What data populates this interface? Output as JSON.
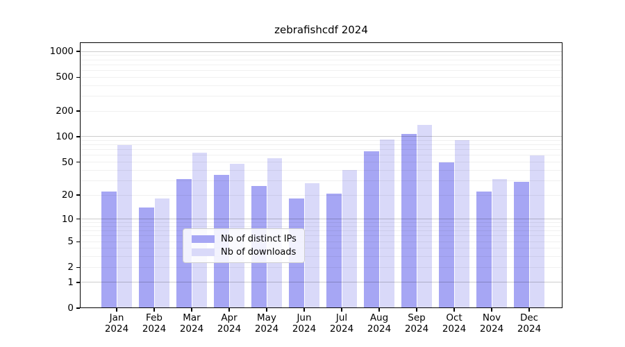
{
  "title": "zebrafishcdf 2024",
  "colors": {
    "bar_distinct_ips": "#a6a6f4",
    "bar_downloads": "#d9d9f9",
    "grid_major": "rgba(0,0,0,0.20)",
    "grid_minor": "rgba(0,0,0,0.06)",
    "spine": "#000000",
    "background": "#ffffff"
  },
  "chart_data": {
    "type": "bar",
    "title": "zebrafishcdf 2024",
    "categories": [
      "Jan",
      "Feb",
      "Mar",
      "Apr",
      "May",
      "Jun",
      "Jul",
      "Aug",
      "Sep",
      "Oct",
      "Nov",
      "Dec"
    ],
    "category_year": "2024",
    "series": [
      {
        "name": "Nb of distinct IPs",
        "color": "#a6a6f4",
        "values": [
          22,
          14,
          31,
          35,
          26,
          18,
          21,
          67,
          108,
          50,
          22,
          29
        ]
      },
      {
        "name": "Nb of downloads",
        "color": "#d9d9f9",
        "values": [
          79,
          18,
          65,
          48,
          55,
          28,
          40,
          93,
          137,
          90,
          31,
          60
        ]
      }
    ],
    "y_axis": {
      "scale": "log1p",
      "tick_values": [
        0,
        1,
        2,
        5,
        10,
        20,
        50,
        100,
        200,
        500,
        1000
      ],
      "tick_labels": [
        "0",
        "1",
        "2",
        "5",
        "10",
        "20",
        "50",
        "100",
        "200",
        "500",
        "1000"
      ],
      "major_grid_values": [
        1,
        10,
        100,
        1000
      ],
      "range_decades": 3.1062
    },
    "grid": true,
    "legend": {
      "position": "inside-bottom-center",
      "entries": [
        "Nb of distinct IPs",
        "Nb of downloads"
      ]
    }
  }
}
